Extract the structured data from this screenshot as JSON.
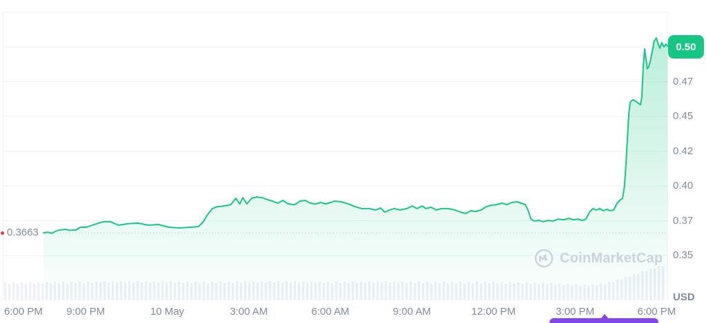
{
  "colors": {
    "accent_green": "#16c784",
    "red": "#ea3943",
    "purple": "#8247e5",
    "axis_text": "#808a9d",
    "gridline": "#eff2f5",
    "axis_tick": "#e3e8ef",
    "dotted_line": "#c6cdd9",
    "watermark": "#ccd3e0",
    "volume_bar": "#edf0f5"
  },
  "watermark": {
    "text": "CoinMarketCap",
    "logo_icon": "coinmarketcap-logo"
  },
  "navigator": {
    "thumb_color": "#8247e5"
  },
  "chart_data": {
    "type": "area",
    "title": "",
    "xlabel": "",
    "ylabel": "",
    "currency": "USD",
    "last_price_label": "0.50",
    "last_price_value": 0.5005,
    "prev_close_label": "0.3663",
    "prev_close_value": 0.3663,
    "legend": "none",
    "grid": "horizontal-only",
    "x_axis": {
      "tick_labels": [
        "6:00 PM",
        "9:00 PM",
        "10 May",
        "3:00 AM",
        "6:00 AM",
        "9:00 AM",
        "12:00 PM",
        "3:00 PM",
        "6:00 PM"
      ],
      "tick_hours": [
        0,
        3,
        6,
        9,
        12,
        15,
        18,
        21,
        24
      ],
      "xlim_hours": [
        -0.04,
        24.4
      ],
      "start_label_hour_zero": "6:00 PM (9 May)"
    },
    "y_axis": {
      "position": "right",
      "tick_labels": [
        "0.50",
        "0.47",
        "0.45",
        "0.42",
        "0.40",
        "0.37",
        "0.35"
      ],
      "tick_values": [
        0.5,
        0.475,
        0.45,
        0.425,
        0.4,
        0.375,
        0.35
      ],
      "top_gridline_value": 0.525,
      "ylim": [
        0.316,
        0.525
      ],
      "unit_label": "USD"
    },
    "series": [
      {
        "name": "price",
        "color": "#16c784",
        "points": [
          [
            1.45,
            0.3663
          ],
          [
            1.6,
            0.3668
          ],
          [
            1.75,
            0.366
          ],
          [
            1.88,
            0.3673
          ],
          [
            2.02,
            0.3683
          ],
          [
            2.26,
            0.3688
          ],
          [
            2.4,
            0.3681
          ],
          [
            2.64,
            0.3683
          ],
          [
            2.8,
            0.3703
          ],
          [
            3.02,
            0.3703
          ],
          [
            3.4,
            0.3728
          ],
          [
            3.65,
            0.3743
          ],
          [
            3.91,
            0.3743
          ],
          [
            4.21,
            0.3718
          ],
          [
            4.54,
            0.3728
          ],
          [
            4.92,
            0.3733
          ],
          [
            5.3,
            0.3718
          ],
          [
            5.68,
            0.3723
          ],
          [
            6.06,
            0.3703
          ],
          [
            6.44,
            0.3698
          ],
          [
            6.82,
            0.3703
          ],
          [
            7.15,
            0.3708
          ],
          [
            7.33,
            0.3743
          ],
          [
            7.46,
            0.3787
          ],
          [
            7.66,
            0.3837
          ],
          [
            7.84,
            0.3851
          ],
          [
            8.09,
            0.3856
          ],
          [
            8.34,
            0.3866
          ],
          [
            8.52,
            0.3911
          ],
          [
            8.67,
            0.3871
          ],
          [
            8.78,
            0.3916
          ],
          [
            8.93,
            0.3871
          ],
          [
            9.1,
            0.3911
          ],
          [
            9.28,
            0.3921
          ],
          [
            9.49,
            0.3916
          ],
          [
            9.69,
            0.3901
          ],
          [
            9.87,
            0.3891
          ],
          [
            10.07,
            0.3876
          ],
          [
            10.25,
            0.3896
          ],
          [
            10.45,
            0.3871
          ],
          [
            10.7,
            0.3866
          ],
          [
            10.88,
            0.3891
          ],
          [
            11.08,
            0.3896
          ],
          [
            11.26,
            0.3876
          ],
          [
            11.46,
            0.3871
          ],
          [
            11.64,
            0.3881
          ],
          [
            11.82,
            0.3871
          ],
          [
            12.02,
            0.3881
          ],
          [
            12.15,
            0.3891
          ],
          [
            12.4,
            0.3886
          ],
          [
            12.66,
            0.3871
          ],
          [
            12.91,
            0.3851
          ],
          [
            13.16,
            0.3837
          ],
          [
            13.42,
            0.3837
          ],
          [
            13.67,
            0.3827
          ],
          [
            13.85,
            0.3842
          ],
          [
            14.0,
            0.3812
          ],
          [
            14.18,
            0.3827
          ],
          [
            14.35,
            0.3837
          ],
          [
            14.56,
            0.3827
          ],
          [
            14.81,
            0.3837
          ],
          [
            15.01,
            0.3856
          ],
          [
            15.19,
            0.3837
          ],
          [
            15.37,
            0.3856
          ],
          [
            15.52,
            0.3837
          ],
          [
            15.7,
            0.3847
          ],
          [
            15.9,
            0.3827
          ],
          [
            16.08,
            0.3837
          ],
          [
            16.33,
            0.3837
          ],
          [
            16.59,
            0.3827
          ],
          [
            16.79,
            0.3812
          ],
          [
            16.97,
            0.3802
          ],
          [
            17.17,
            0.3822
          ],
          [
            17.35,
            0.3817
          ],
          [
            17.55,
            0.3827
          ],
          [
            17.73,
            0.3851
          ],
          [
            17.91,
            0.3861
          ],
          [
            18.11,
            0.3866
          ],
          [
            18.31,
            0.3876
          ],
          [
            18.49,
            0.3866
          ],
          [
            18.67,
            0.3881
          ],
          [
            18.87,
            0.3886
          ],
          [
            19.02,
            0.3876
          ],
          [
            19.17,
            0.3866
          ],
          [
            19.27,
            0.3827
          ],
          [
            19.38,
            0.3762
          ],
          [
            19.5,
            0.3748
          ],
          [
            19.68,
            0.3752
          ],
          [
            19.83,
            0.3743
          ],
          [
            20.01,
            0.3752
          ],
          [
            20.19,
            0.3748
          ],
          [
            20.39,
            0.3762
          ],
          [
            20.59,
            0.3757
          ],
          [
            20.77,
            0.3767
          ],
          [
            20.95,
            0.3757
          ],
          [
            21.1,
            0.3762
          ],
          [
            21.28,
            0.3752
          ],
          [
            21.4,
            0.3762
          ],
          [
            21.53,
            0.3812
          ],
          [
            21.66,
            0.3837
          ],
          [
            21.79,
            0.3827
          ],
          [
            21.91,
            0.3837
          ],
          [
            22.04,
            0.3822
          ],
          [
            22.17,
            0.3832
          ],
          [
            22.29,
            0.3822
          ],
          [
            22.42,
            0.3827
          ],
          [
            22.55,
            0.3876
          ],
          [
            22.67,
            0.3901
          ],
          [
            22.75,
            0.3911
          ],
          [
            22.82,
            0.4
          ],
          [
            22.87,
            0.4149
          ],
          [
            22.93,
            0.4347
          ],
          [
            22.98,
            0.452
          ],
          [
            23.03,
            0.4604
          ],
          [
            23.13,
            0.4619
          ],
          [
            23.23,
            0.4609
          ],
          [
            23.33,
            0.4594
          ],
          [
            23.41,
            0.4584
          ],
          [
            23.46,
            0.4644
          ],
          [
            23.51,
            0.4856
          ],
          [
            23.56,
            0.4985
          ],
          [
            23.61,
            0.4916
          ],
          [
            23.66,
            0.4842
          ],
          [
            23.71,
            0.4856
          ],
          [
            23.76,
            0.4891
          ],
          [
            23.84,
            0.4965
          ],
          [
            23.91,
            0.504
          ],
          [
            23.99,
            0.5064
          ],
          [
            24.07,
            0.5015
          ],
          [
            24.12,
            0.499
          ],
          [
            24.19,
            0.503
          ],
          [
            24.27,
            0.5
          ],
          [
            24.35,
            0.502
          ],
          [
            24.4,
            0.5005
          ]
        ]
      }
    ],
    "volume_envelope": [
      [
        -0.05,
        0.5
      ],
      [
        2.38,
        0.52
      ],
      [
        4.92,
        0.54
      ],
      [
        7.46,
        0.52
      ],
      [
        9.99,
        0.54
      ],
      [
        12.53,
        0.52
      ],
      [
        14.05,
        0.54
      ],
      [
        15.57,
        0.52
      ],
      [
        17.6,
        0.52
      ],
      [
        19.17,
        0.5
      ],
      [
        20.13,
        0.48
      ],
      [
        21.15,
        0.44
      ],
      [
        21.66,
        0.44
      ],
      [
        22.04,
        0.48
      ],
      [
        22.42,
        0.56
      ],
      [
        22.8,
        0.66
      ],
      [
        23.18,
        0.76
      ],
      [
        23.56,
        0.86
      ],
      [
        23.89,
        0.94
      ],
      [
        24.14,
        1.0
      ],
      [
        24.27,
        1.0
      ]
    ]
  }
}
